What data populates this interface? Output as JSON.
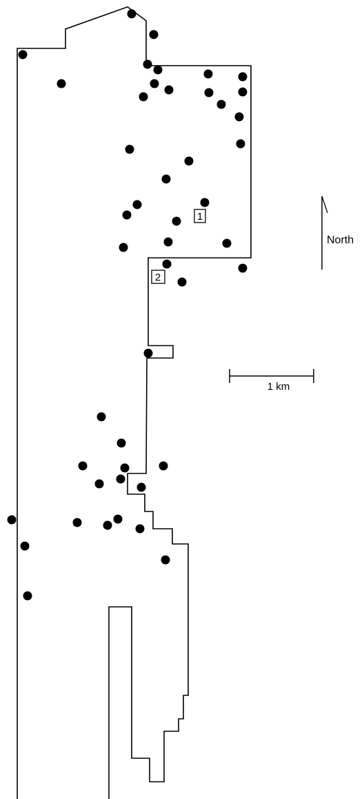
{
  "map": {
    "north_label": "North",
    "scale_label": "1 km",
    "markers": [
      {
        "id": "1",
        "label": "1"
      },
      {
        "id": "2",
        "label": "2"
      }
    ],
    "colors": {
      "ink": "#000000",
      "background": "#ffffff"
    }
  }
}
